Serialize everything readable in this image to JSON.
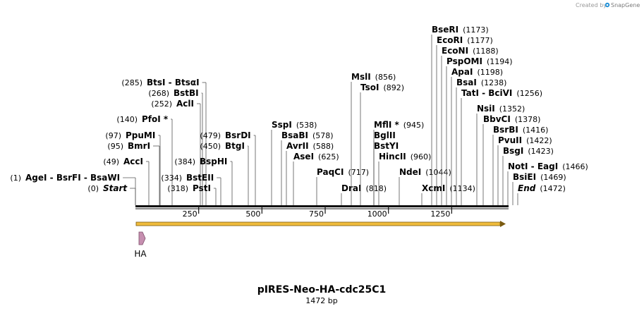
{
  "credit": {
    "text": "Created by",
    "brand": "SnapGene",
    "color": "#1f8fd6"
  },
  "plasmid": {
    "name": "pIRES-Neo-HA-cdc25C1",
    "length_label": "1472 bp",
    "length": 1472
  },
  "scale": {
    "ticks": [
      250,
      500,
      750,
      1000,
      1250
    ]
  },
  "feature": {
    "name": "HA",
    "fill": "#c68fb0",
    "stroke": "#7d4f6a"
  },
  "orf": {
    "fill": "#f0bc3c",
    "stroke": "#7a5a10"
  },
  "left_labels": [
    {
      "name": "AgeI  -  BsrFI  -  BsaWI",
      "pos_label": "(1)",
      "pos": 1,
      "pos_before": true
    },
    {
      "name": "Start",
      "pos_label": "(0)",
      "pos": 0,
      "pos_before": true,
      "italic": true
    },
    {
      "name": "AccI",
      "pos_label": "(49)",
      "pos": 49,
      "pos_before": true
    },
    {
      "name": "BmrI",
      "pos_label": "(95)",
      "pos": 95,
      "pos_before": true
    },
    {
      "name": "PpuMI",
      "pos_label": "(97)",
      "pos": 97,
      "pos_before": true
    },
    {
      "name": "PfoI *",
      "pos_label": "(140)",
      "pos": 140,
      "pos_before": true
    },
    {
      "name": "AclI",
      "pos_label": "(252)",
      "pos": 252,
      "pos_before": true
    },
    {
      "name": "BstBI",
      "pos_label": "(268)",
      "pos": 268,
      "pos_before": true
    },
    {
      "name": "BtsI  -  BtsαI",
      "pos_label": "(285)",
      "pos": 285,
      "pos_before": true
    },
    {
      "name": "PstI",
      "pos_label": "(318)",
      "pos": 318,
      "pos_before": true
    },
    {
      "name": "BstEII",
      "pos_label": "(334)",
      "pos": 334,
      "pos_before": true
    },
    {
      "name": "BspHI",
      "pos_label": "(384)",
      "pos": 384,
      "pos_before": true
    },
    {
      "name": "BtgI",
      "pos_label": "(450)",
      "pos": 450,
      "pos_before": true
    },
    {
      "name": "BsrDI",
      "pos_label": "(479)",
      "pos": 479,
      "pos_before": true
    }
  ],
  "right_labels": [
    {
      "name": "SspI",
      "pos_label": "(538)",
      "pos": 538
    },
    {
      "name": "BsaBI",
      "pos_label": "(578)",
      "pos": 578
    },
    {
      "name": "AvrII",
      "pos_label": "(588)",
      "pos": 588
    },
    {
      "name": "AseI",
      "pos_label": "(625)",
      "pos": 625
    },
    {
      "name": "PaqCI",
      "pos_label": "(717)",
      "pos": 717
    },
    {
      "name": "DraI",
      "pos_label": "(818)",
      "pos": 818
    },
    {
      "name": "MslI",
      "pos_label": "(856)",
      "pos": 856
    },
    {
      "name": "TsoI",
      "pos_label": "(892)",
      "pos": 892
    },
    {
      "name": "MflI *",
      "pos_label": "(945)",
      "pos": 945
    },
    {
      "name": "BglII",
      "pos_label": "",
      "pos": 945
    },
    {
      "name": "BstYI",
      "pos_label": "",
      "pos": 945
    },
    {
      "name": "HincII",
      "pos_label": "(960)",
      "pos": 960
    },
    {
      "name": "NdeI",
      "pos_label": "(1044)",
      "pos": 1044
    },
    {
      "name": "XcmI",
      "pos_label": "(1134)",
      "pos": 1134
    },
    {
      "name": "BseRI",
      "pos_label": "(1173)",
      "pos": 1173
    },
    {
      "name": "EcoRI",
      "pos_label": "(1177)",
      "pos": 1177
    },
    {
      "name": "EcoNI",
      "pos_label": "(1188)",
      "pos": 1188
    },
    {
      "name": "PspOMI",
      "pos_label": "(1194)",
      "pos": 1194
    },
    {
      "name": "ApaI",
      "pos_label": "(1198)",
      "pos": 1198
    },
    {
      "name": "BsaI",
      "pos_label": "(1238)",
      "pos": 1238
    },
    {
      "name": "TatI  -  BciVI",
      "pos_label": "(1256)",
      "pos": 1256
    },
    {
      "name": "NsiI",
      "pos_label": "(1352)",
      "pos": 1352
    },
    {
      "name": "BbvCI",
      "pos_label": "(1378)",
      "pos": 1378
    },
    {
      "name": "BsrBI",
      "pos_label": "(1416)",
      "pos": 1416
    },
    {
      "name": "PvuII",
      "pos_label": "(1422)",
      "pos": 1422
    },
    {
      "name": "BsgI",
      "pos_label": "(1423)",
      "pos": 1423
    },
    {
      "name": "NotI  -  EagI",
      "pos_label": "(1466)",
      "pos": 1466
    },
    {
      "name": "BsiEI",
      "pos_label": "(1469)",
      "pos": 1469
    },
    {
      "name": "End",
      "pos_label": "(1472)",
      "pos": 1472,
      "italic": true
    }
  ]
}
